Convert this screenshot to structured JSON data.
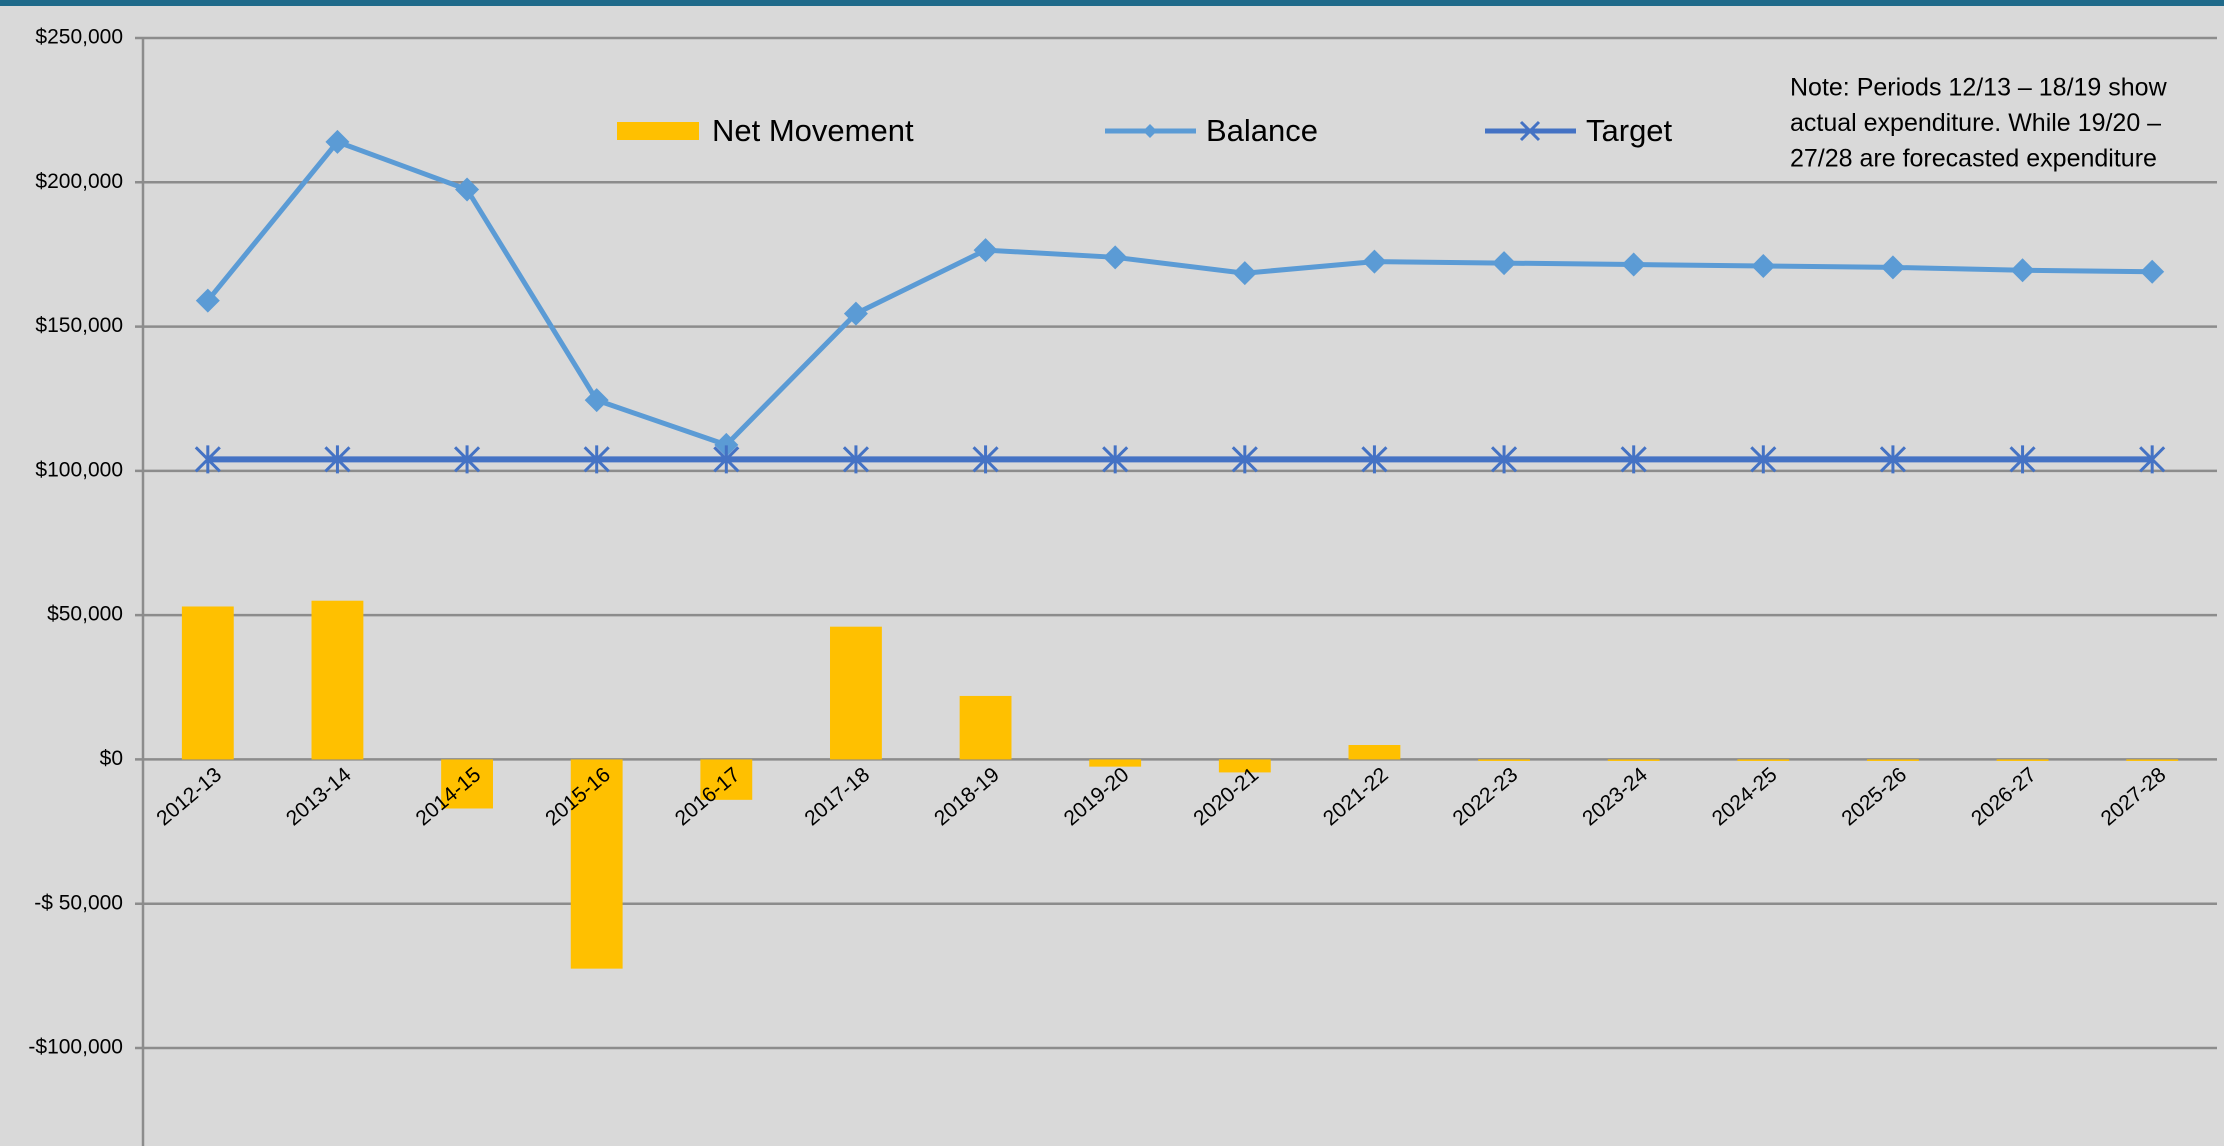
{
  "chart_data": {
    "type": "bar_line",
    "categories": [
      "2012-13",
      "2013-14",
      "2014-15",
      "2015-16",
      "2016-17",
      "2017-18",
      "2018-19",
      "2019-20",
      "2020-21",
      "2021-22",
      "2022-23",
      "2023-24",
      "2024-25",
      "2025-26",
      "2026-27",
      "2027-28"
    ],
    "series": [
      {
        "name": "Net Movement",
        "type": "bar",
        "color": "#ffc000",
        "values": [
          53000,
          55000,
          -17000,
          -72500,
          -14000,
          46000,
          22000,
          -2500,
          -4500,
          5000,
          0,
          0,
          0,
          0,
          0,
          0
        ]
      },
      {
        "name": "Balance",
        "type": "line",
        "marker": "diamond",
        "color": "#5b9bd5",
        "values": [
          159000,
          214000,
          197500,
          124500,
          109000,
          154500,
          176500,
          174000,
          168500,
          172500,
          172000,
          171500,
          171000,
          170500,
          169500,
          169000
        ]
      },
      {
        "name": "Target",
        "type": "line",
        "marker": "star",
        "color": "#4472c4",
        "values": [
          104000,
          104000,
          104000,
          104000,
          104000,
          104000,
          104000,
          104000,
          104000,
          104000,
          104000,
          104000,
          104000,
          104000,
          104000,
          104000
        ]
      }
    ],
    "ylim": [
      -100000,
      250000
    ],
    "yticks": [
      {
        "value": -100000,
        "label": "-$100,000"
      },
      {
        "value": -50000,
        "label": "-$ 50,000"
      },
      {
        "value": 0,
        "label": "$0"
      },
      {
        "value": 50000,
        "label": "$50,000"
      },
      {
        "value": 100000,
        "label": "$100,000"
      },
      {
        "value": 150000,
        "label": "$150,000"
      },
      {
        "value": 200000,
        "label": "$200,000"
      },
      {
        "value": 250000,
        "label": "$250,000"
      }
    ],
    "grid": true,
    "legend": "top",
    "note": [
      "Note: Periods 12/13 – 18/19 show",
      "actual expenditure. While 19/20 –",
      "27/28 are forecasted  expenditure"
    ]
  }
}
